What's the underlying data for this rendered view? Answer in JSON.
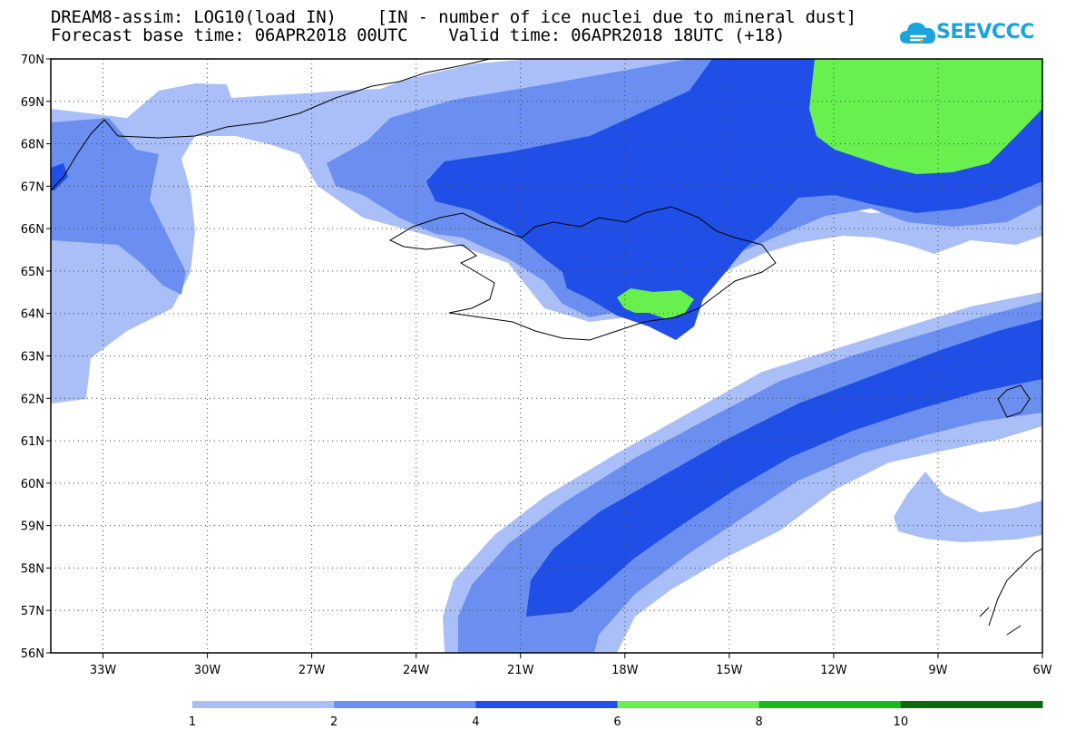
{
  "header": {
    "line1": "DREAM8-assim: LOG10(load IN)    [IN - number of ice nuclei due to mineral dust]",
    "line2": "Forecast base time: 06APR2018 00UTC    Valid time: 06APR2018 18UTC (+18)"
  },
  "logo": {
    "text": "SEEVCCC",
    "icon": "cloud-icon",
    "color": "#1aa3dc"
  },
  "map": {
    "lon_range": [
      -34.5,
      -6
    ],
    "lat_range": [
      56,
      70
    ],
    "lat_labels": [
      "70N",
      "69N",
      "68N",
      "67N",
      "66N",
      "65N",
      "64N",
      "63N",
      "62N",
      "61N",
      "60N",
      "59N",
      "58N",
      "57N",
      "56N"
    ],
    "lon_labels": [
      "33W",
      "30W",
      "27W",
      "24W",
      "21W",
      "18W",
      "15W",
      "12W",
      "9W",
      "6W"
    ],
    "lon_values": [
      -33,
      -30,
      -27,
      -24,
      -21,
      -18,
      -15,
      -12,
      -9,
      -6
    ],
    "lat_values": [
      70,
      69,
      68,
      67,
      66,
      65,
      64,
      63,
      62,
      61,
      60,
      59,
      58,
      57,
      56
    ],
    "grid": "dotted"
  },
  "legend": {
    "colors": [
      "#aabff7",
      "#6b8ff0",
      "#1f4fe6",
      "#68f04f",
      "#1ab81a",
      "#0a6a0a"
    ],
    "labels": [
      "1",
      "2",
      "4",
      "6",
      "8",
      "10"
    ]
  }
}
